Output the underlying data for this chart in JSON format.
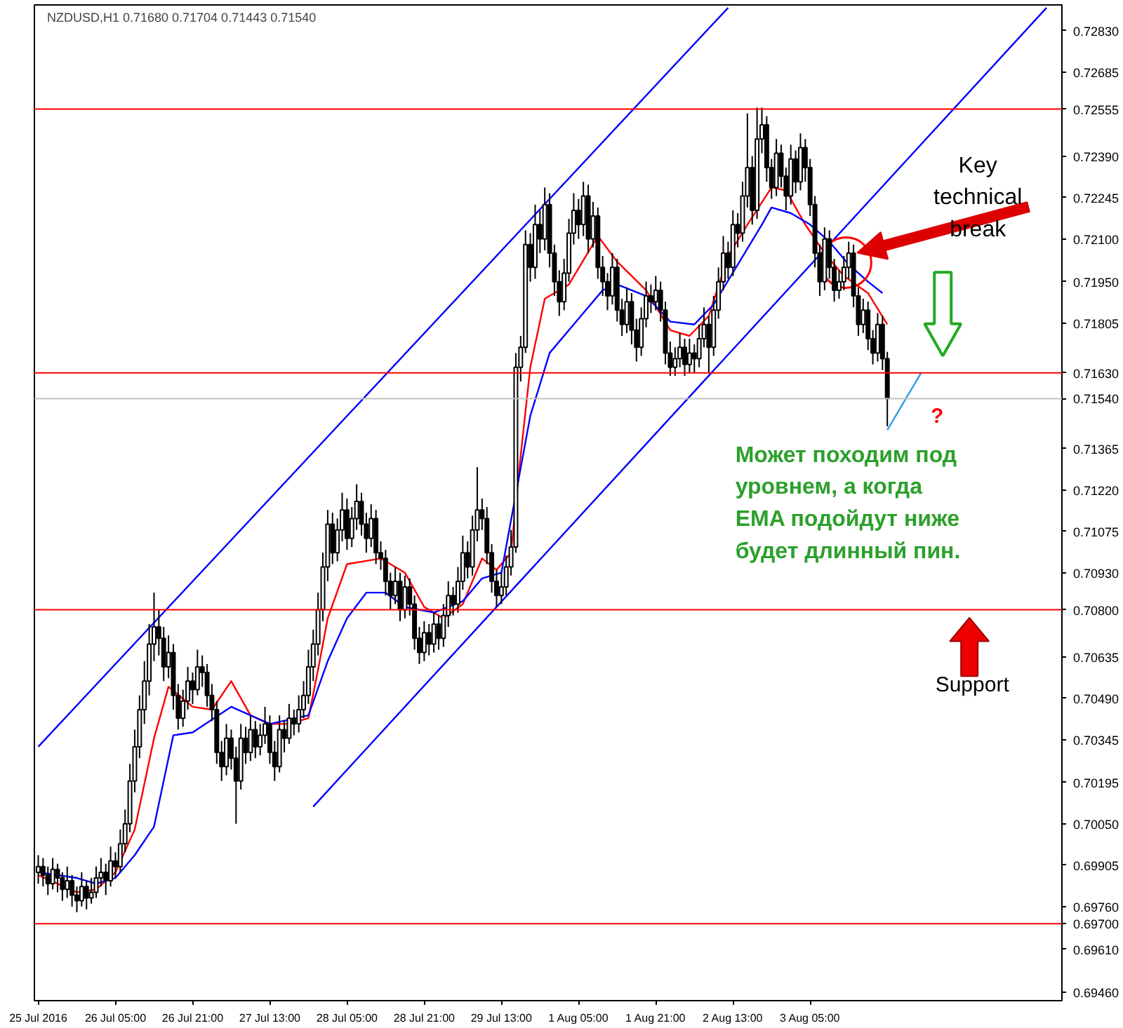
{
  "chart_data": {
    "type": "candlestick",
    "title": "NZDUSD,H1  0.71680 0.71704 0.71443 0.71540",
    "categories": [
      "25 Jul 2016",
      null,
      null,
      null,
      null,
      null,
      null,
      null,
      null,
      null,
      null,
      null,
      null,
      null,
      null,
      null,
      "26 Jul 05:00",
      null,
      null,
      null,
      null,
      null,
      null,
      null,
      null,
      null,
      null,
      null,
      null,
      null,
      null,
      null,
      "26 Jul 21:00",
      null,
      null,
      null,
      null,
      null,
      null,
      null,
      null,
      null,
      null,
      null,
      null,
      null,
      null,
      null,
      "27 Jul 13:00",
      null,
      null,
      null,
      null,
      null,
      null,
      null,
      null,
      null,
      null,
      null,
      null,
      null,
      null,
      null,
      "28 Jul 05:00",
      null,
      null,
      null,
      null,
      null,
      null,
      null,
      null,
      null,
      null,
      null,
      null,
      null,
      null,
      null,
      "28 Jul 21:00",
      null,
      null,
      null,
      null,
      null,
      null,
      null,
      null,
      null,
      null,
      null,
      null,
      null,
      null,
      null,
      "29 Jul 13:00",
      null,
      null,
      null,
      null,
      null,
      null,
      null,
      null,
      null,
      null,
      null,
      null,
      null,
      null,
      null,
      "1 Aug 05:00",
      null,
      null,
      null,
      null,
      null,
      null,
      null,
      null,
      null,
      null,
      null,
      null,
      null,
      null,
      null,
      "1 Aug 21:00",
      null,
      null,
      null,
      null,
      null,
      null,
      null,
      null,
      null,
      null,
      null,
      null,
      null,
      null,
      null,
      "2 Aug 13:00",
      null,
      null,
      null,
      null,
      null,
      null,
      null,
      null,
      null,
      null,
      null,
      null,
      null,
      null,
      null,
      "3 Aug 05:00",
      null,
      null,
      null,
      null,
      null,
      null,
      null,
      null,
      null,
      null,
      null,
      null,
      null,
      null,
      null,
      null,
      null,
      null,
      null,
      null,
      null,
      null,
      null,
      null,
      null,
      null,
      null,
      null,
      null,
      null,
      null,
      null,
      null,
      null,
      null,
      null,
      null,
      null,
      null,
      null,
      null,
      null,
      null,
      null,
      null,
      null,
      null,
      null,
      null,
      null,
      null,
      null
    ],
    "ohlc": [
      [
        0.6988,
        0.6994,
        0.6984,
        0.699
      ],
      [
        0.699,
        0.6993,
        0.6983,
        0.6987
      ],
      [
        0.6987,
        0.699,
        0.698,
        0.6984
      ],
      [
        0.6984,
        0.6993,
        0.6982,
        0.6989
      ],
      [
        0.6989,
        0.6991,
        0.6981,
        0.6986
      ],
      [
        0.6986,
        0.6988,
        0.6978,
        0.6982
      ],
      [
        0.6982,
        0.699,
        0.6979,
        0.6985
      ],
      [
        0.6985,
        0.6987,
        0.6976,
        0.698
      ],
      [
        0.698,
        0.6983,
        0.6974,
        0.6978
      ],
      [
        0.6978,
        0.6988,
        0.6976,
        0.6983
      ],
      [
        0.6983,
        0.6985,
        0.6975,
        0.6979
      ],
      [
        0.6979,
        0.6986,
        0.6977,
        0.6981
      ],
      [
        0.6981,
        0.699,
        0.6979,
        0.6986
      ],
      [
        0.6986,
        0.6993,
        0.6983,
        0.6988
      ],
      [
        0.6988,
        0.6991,
        0.698,
        0.6985
      ],
      [
        0.6985,
        0.6997,
        0.6983,
        0.6992
      ],
      [
        0.6992,
        0.6995,
        0.6986,
        0.699
      ],
      [
        0.699,
        0.7003,
        0.6988,
        0.6998
      ],
      [
        0.6998,
        0.701,
        0.6995,
        0.7005
      ],
      [
        0.7005,
        0.7026,
        0.7002,
        0.702
      ],
      [
        0.702,
        0.7038,
        0.7016,
        0.7032
      ],
      [
        0.7032,
        0.705,
        0.7028,
        0.7045
      ],
      [
        0.7045,
        0.7062,
        0.704,
        0.7055
      ],
      [
        0.7055,
        0.7075,
        0.705,
        0.7068
      ],
      [
        0.7068,
        0.7086,
        0.7062,
        0.7074
      ],
      [
        0.7074,
        0.708,
        0.7064,
        0.707
      ],
      [
        0.707,
        0.7074,
        0.7055,
        0.706
      ],
      [
        0.706,
        0.7071,
        0.7056,
        0.7065
      ],
      [
        0.7065,
        0.7068,
        0.7045,
        0.705
      ],
      [
        0.705,
        0.7054,
        0.7038,
        0.7042
      ],
      [
        0.7042,
        0.7052,
        0.7039,
        0.7048
      ],
      [
        0.7048,
        0.706,
        0.7045,
        0.7055
      ],
      [
        0.7055,
        0.7058,
        0.7047,
        0.7052
      ],
      [
        0.7052,
        0.7066,
        0.705,
        0.706
      ],
      [
        0.706,
        0.7064,
        0.7053,
        0.7058
      ],
      [
        0.7058,
        0.7061,
        0.7046,
        0.705
      ],
      [
        0.705,
        0.7054,
        0.7041,
        0.7045
      ],
      [
        0.7045,
        0.7048,
        0.7026,
        0.703
      ],
      [
        0.703,
        0.7034,
        0.702,
        0.7025
      ],
      [
        0.7025,
        0.704,
        0.7022,
        0.7035
      ],
      [
        0.7035,
        0.7038,
        0.7024,
        0.7028
      ],
      [
        0.7028,
        0.7032,
        0.7005,
        0.702
      ],
      [
        0.702,
        0.704,
        0.7017,
        0.7035
      ],
      [
        0.7035,
        0.7039,
        0.7026,
        0.703
      ],
      [
        0.703,
        0.7043,
        0.7027,
        0.7038
      ],
      [
        0.7038,
        0.7041,
        0.7028,
        0.7032
      ],
      [
        0.7032,
        0.704,
        0.7029,
        0.7036
      ],
      [
        0.7036,
        0.7046,
        0.7033,
        0.704
      ],
      [
        0.704,
        0.7043,
        0.7026,
        0.703
      ],
      [
        0.703,
        0.7034,
        0.702,
        0.7025
      ],
      [
        0.7025,
        0.7043,
        0.7023,
        0.7038
      ],
      [
        0.7038,
        0.7041,
        0.703,
        0.7035
      ],
      [
        0.7035,
        0.7047,
        0.7033,
        0.7042
      ],
      [
        0.7042,
        0.7045,
        0.7036,
        0.704
      ],
      [
        0.704,
        0.705,
        0.7037,
        0.7045
      ],
      [
        0.7045,
        0.7055,
        0.7042,
        0.705
      ],
      [
        0.705,
        0.7066,
        0.7047,
        0.706
      ],
      [
        0.706,
        0.7073,
        0.7055,
        0.7068
      ],
      [
        0.7068,
        0.7086,
        0.7064,
        0.708
      ],
      [
        0.708,
        0.71,
        0.7076,
        0.7095
      ],
      [
        0.7095,
        0.7115,
        0.709,
        0.711
      ],
      [
        0.711,
        0.7114,
        0.7096,
        0.71
      ],
      [
        0.71,
        0.7112,
        0.7097,
        0.7108
      ],
      [
        0.7108,
        0.7121,
        0.7104,
        0.7115
      ],
      [
        0.7115,
        0.7119,
        0.7101,
        0.7105
      ],
      [
        0.7105,
        0.7116,
        0.7102,
        0.7112
      ],
      [
        0.7112,
        0.7124,
        0.7108,
        0.7118
      ],
      [
        0.7118,
        0.7121,
        0.7106,
        0.711
      ],
      [
        0.711,
        0.7114,
        0.71,
        0.7105
      ],
      [
        0.7105,
        0.7117,
        0.7102,
        0.7112
      ],
      [
        0.7112,
        0.7115,
        0.7096,
        0.71
      ],
      [
        0.71,
        0.7104,
        0.7094,
        0.7098
      ],
      [
        0.7098,
        0.7101,
        0.7085,
        0.709
      ],
      [
        0.709,
        0.7093,
        0.708,
        0.7085
      ],
      [
        0.7085,
        0.7095,
        0.7082,
        0.709
      ],
      [
        0.709,
        0.7093,
        0.7076,
        0.708
      ],
      [
        0.708,
        0.7092,
        0.7077,
        0.7088
      ],
      [
        0.7088,
        0.7091,
        0.7078,
        0.7082
      ],
      [
        0.7082,
        0.7085,
        0.7066,
        0.707
      ],
      [
        0.707,
        0.7074,
        0.7061,
        0.7065
      ],
      [
        0.7065,
        0.7076,
        0.7062,
        0.7072
      ],
      [
        0.7072,
        0.7075,
        0.7064,
        0.7068
      ],
      [
        0.7068,
        0.7079,
        0.7065,
        0.7075
      ],
      [
        0.7075,
        0.7078,
        0.7066,
        0.707
      ],
      [
        0.707,
        0.7082,
        0.7067,
        0.7078
      ],
      [
        0.7078,
        0.709,
        0.7074,
        0.7085
      ],
      [
        0.7085,
        0.7088,
        0.7078,
        0.7082
      ],
      [
        0.7082,
        0.7095,
        0.7079,
        0.709
      ],
      [
        0.709,
        0.7106,
        0.7087,
        0.71
      ],
      [
        0.71,
        0.7104,
        0.7091,
        0.7095
      ],
      [
        0.7095,
        0.7113,
        0.7092,
        0.7108
      ],
      [
        0.7108,
        0.713,
        0.7104,
        0.7115
      ],
      [
        0.7115,
        0.7119,
        0.7108,
        0.7112
      ],
      [
        0.7112,
        0.7116,
        0.7096,
        0.71
      ],
      [
        0.71,
        0.7103,
        0.7086,
        0.709
      ],
      [
        0.709,
        0.7094,
        0.7081,
        0.7085
      ],
      [
        0.7085,
        0.7093,
        0.7082,
        0.7088
      ],
      [
        0.7088,
        0.7099,
        0.7085,
        0.7095
      ],
      [
        0.7095,
        0.7108,
        0.7092,
        0.7102
      ],
      [
        0.7102,
        0.717,
        0.71,
        0.7165
      ],
      [
        0.7165,
        0.7176,
        0.716,
        0.7172
      ],
      [
        0.7172,
        0.7213,
        0.717,
        0.7208
      ],
      [
        0.7208,
        0.7212,
        0.7195,
        0.72
      ],
      [
        0.72,
        0.7222,
        0.7196,
        0.7215
      ],
      [
        0.7215,
        0.722,
        0.7205,
        0.721
      ],
      [
        0.721,
        0.7228,
        0.7206,
        0.7222
      ],
      [
        0.7222,
        0.7226,
        0.72,
        0.7205
      ],
      [
        0.7205,
        0.7208,
        0.719,
        0.7195
      ],
      [
        0.7195,
        0.7199,
        0.7183,
        0.7188
      ],
      [
        0.7188,
        0.7203,
        0.7185,
        0.7198
      ],
      [
        0.7198,
        0.7217,
        0.7195,
        0.7212
      ],
      [
        0.7212,
        0.7226,
        0.7208,
        0.722
      ],
      [
        0.722,
        0.7224,
        0.721,
        0.7215
      ],
      [
        0.7215,
        0.723,
        0.7211,
        0.7225
      ],
      [
        0.7225,
        0.7229,
        0.7205,
        0.721
      ],
      [
        0.721,
        0.7223,
        0.7207,
        0.7218
      ],
      [
        0.7218,
        0.7221,
        0.7196,
        0.72
      ],
      [
        0.72,
        0.7204,
        0.719,
        0.7195
      ],
      [
        0.7195,
        0.7198,
        0.7185,
        0.719
      ],
      [
        0.719,
        0.7205,
        0.7187,
        0.72
      ],
      [
        0.72,
        0.7203,
        0.7181,
        0.7185
      ],
      [
        0.7185,
        0.7189,
        0.7176,
        0.718
      ],
      [
        0.718,
        0.7193,
        0.7177,
        0.7188
      ],
      [
        0.7188,
        0.7191,
        0.7173,
        0.7178
      ],
      [
        0.7178,
        0.7182,
        0.7167,
        0.7172
      ],
      [
        0.7172,
        0.7186,
        0.7169,
        0.7182
      ],
      [
        0.7182,
        0.7195,
        0.7179,
        0.719
      ],
      [
        0.719,
        0.7194,
        0.7184,
        0.7188
      ],
      [
        0.7188,
        0.7197,
        0.7185,
        0.7192
      ],
      [
        0.7192,
        0.7195,
        0.7181,
        0.7185
      ],
      [
        0.7185,
        0.7188,
        0.7166,
        0.717
      ],
      [
        0.717,
        0.7174,
        0.7162,
        0.7165
      ],
      [
        0.7165,
        0.7172,
        0.7162,
        0.7168
      ],
      [
        0.7168,
        0.7177,
        0.7165,
        0.7172
      ],
      [
        0.7172,
        0.7175,
        0.7162,
        0.7166
      ],
      [
        0.7166,
        0.7175,
        0.7163,
        0.717
      ],
      [
        0.717,
        0.7173,
        0.7163,
        0.7168
      ],
      [
        0.7168,
        0.718,
        0.7165,
        0.7175
      ],
      [
        0.7175,
        0.7186,
        0.7172,
        0.718
      ],
      [
        0.718,
        0.7183,
        0.7163,
        0.7172
      ],
      [
        0.7172,
        0.719,
        0.7169,
        0.7185
      ],
      [
        0.7185,
        0.72,
        0.7182,
        0.7195
      ],
      [
        0.7195,
        0.7211,
        0.7192,
        0.7205
      ],
      [
        0.7205,
        0.7209,
        0.7196,
        0.72
      ],
      [
        0.72,
        0.722,
        0.7197,
        0.7215
      ],
      [
        0.7215,
        0.7219,
        0.7207,
        0.7212
      ],
      [
        0.7212,
        0.723,
        0.7209,
        0.7225
      ],
      [
        0.7225,
        0.7254,
        0.7221,
        0.7235
      ],
      [
        0.7235,
        0.7239,
        0.7215,
        0.722
      ],
      [
        0.722,
        0.7256,
        0.7217,
        0.7245
      ],
      [
        0.7245,
        0.7256,
        0.724,
        0.725
      ],
      [
        0.725,
        0.7253,
        0.723,
        0.7235
      ],
      [
        0.7235,
        0.7238,
        0.7224,
        0.7228
      ],
      [
        0.7228,
        0.7245,
        0.7225,
        0.724
      ],
      [
        0.724,
        0.7243,
        0.7228,
        0.7232
      ],
      [
        0.7232,
        0.7235,
        0.722,
        0.7225
      ],
      [
        0.7225,
        0.7243,
        0.7222,
        0.7238
      ],
      [
        0.7238,
        0.7241,
        0.7226,
        0.723
      ],
      [
        0.723,
        0.7247,
        0.7227,
        0.7242
      ],
      [
        0.7242,
        0.7245,
        0.723,
        0.7235
      ],
      [
        0.7235,
        0.7238,
        0.7218,
        0.7222
      ],
      [
        0.7222,
        0.7225,
        0.72,
        0.7205
      ],
      [
        0.7205,
        0.7208,
        0.719,
        0.7195
      ],
      [
        0.7195,
        0.7214,
        0.7192,
        0.721
      ],
      [
        0.721,
        0.7213,
        0.7196,
        0.72
      ],
      [
        0.72,
        0.7203,
        0.7188,
        0.7192
      ],
      [
        0.7192,
        0.7199,
        0.7189,
        0.7195
      ],
      [
        0.7195,
        0.7204,
        0.7192,
        0.72
      ],
      [
        0.72,
        0.7209,
        0.7196,
        0.7205
      ],
      [
        0.7205,
        0.7208,
        0.7186,
        0.719
      ],
      [
        0.719,
        0.7193,
        0.7176,
        0.718
      ],
      [
        0.718,
        0.7189,
        0.7177,
        0.7185
      ],
      [
        0.7185,
        0.7188,
        0.7171,
        0.7175
      ],
      [
        0.7175,
        0.7178,
        0.7166,
        0.717
      ],
      [
        0.717,
        0.7184,
        0.7167,
        0.718
      ],
      [
        0.718,
        0.7183,
        0.7164,
        0.7168
      ],
      [
        0.7168,
        0.71704,
        0.71443,
        0.7154
      ],
      null,
      null,
      null,
      null,
      null,
      null,
      null,
      null,
      null,
      null,
      null,
      null,
      null,
      null,
      null,
      null,
      null,
      null,
      null,
      null,
      null,
      null,
      null,
      null,
      null,
      null,
      null,
      null,
      null,
      null,
      null,
      null,
      null,
      null,
      null,
      null
    ],
    "series": [
      {
        "type": "line",
        "color": "#ff0000",
        "values": [
          0.6987,
          null,
          null,
          null,
          null,
          null,
          null,
          null,
          0.6981,
          null,
          null,
          null,
          0.6982,
          null,
          null,
          null,
          0.6988,
          null,
          null,
          null,
          0.7003,
          null,
          null,
          null,
          0.7035,
          null,
          null,
          0.7053,
          null,
          null,
          null,
          null,
          0.7046,
          null,
          null,
          null,
          0.7045,
          null,
          null,
          null,
          0.7055,
          null,
          null,
          null,
          0.7043,
          null,
          null,
          null,
          0.704,
          null,
          null,
          null,
          0.704,
          null,
          null,
          null,
          0.7042,
          null,
          0.7059,
          null,
          0.7077,
          null,
          null,
          null,
          0.7096,
          null,
          null,
          null,
          null,
          null,
          null,
          0.7098,
          null,
          null,
          null,
          null,
          0.7093,
          null,
          null,
          null,
          0.7081,
          null,
          null,
          null,
          0.7077,
          null,
          null,
          null,
          0.7082,
          null,
          null,
          null,
          0.7098,
          null,
          null,
          0.7094,
          null,
          null,
          0.71,
          null,
          0.7134,
          null,
          0.7165,
          null,
          null,
          0.7189,
          null,
          null,
          null,
          null,
          0.7194,
          null,
          null,
          null,
          null,
          null,
          0.7211,
          null,
          null,
          null,
          0.7202,
          null,
          null,
          null,
          null,
          null,
          0.7192,
          null,
          null,
          null,
          null,
          0.7178,
          null,
          null,
          null,
          0.7176,
          null,
          null,
          null,
          0.7183,
          null,
          null,
          null,
          0.7204,
          null,
          null,
          null,
          0.7215,
          null,
          null,
          null,
          null,
          0.7228,
          null,
          null,
          0.7227,
          null,
          null,
          null,
          0.7215,
          null,
          null,
          null,
          0.7205,
          null,
          null,
          null,
          0.7197,
          null,
          null,
          null,
          null,
          0.7191,
          null,
          null,
          null,
          0.718,
          null,
          null,
          null,
          null,
          null,
          null,
          null,
          null,
          null,
          null,
          null,
          null,
          null,
          null,
          null,
          null,
          null,
          null,
          null,
          null,
          null,
          null,
          null,
          null,
          null,
          null,
          null,
          null,
          null,
          null,
          null,
          null,
          null,
          null,
          null,
          null
        ]
      },
      {
        "type": "line",
        "color": "#0000ff",
        "values": [
          0.6988,
          null,
          null,
          null,
          null,
          null,
          null,
          null,
          0.6986,
          null,
          null,
          null,
          0.6984,
          null,
          null,
          null,
          0.6986,
          null,
          null,
          null,
          0.6994,
          null,
          null,
          null,
          0.7004,
          null,
          null,
          null,
          0.7036,
          null,
          null,
          null,
          0.7037,
          null,
          null,
          null,
          null,
          null,
          null,
          null,
          0.7046,
          null,
          null,
          null,
          null,
          null,
          null,
          null,
          0.704,
          null,
          null,
          null,
          null,
          null,
          null,
          null,
          0.7043,
          null,
          null,
          null,
          0.7062,
          null,
          null,
          null,
          0.7077,
          null,
          null,
          null,
          0.7086,
          null,
          null,
          null,
          0.7086,
          null,
          null,
          null,
          0.7081,
          null,
          null,
          null,
          null,
          null,
          0.7079,
          null,
          null,
          null,
          null,
          null,
          0.7083,
          null,
          null,
          null,
          0.7091,
          null,
          null,
          null,
          0.7093,
          null,
          null,
          null,
          null,
          null,
          0.7148,
          null,
          null,
          null,
          0.717,
          null,
          null,
          null,
          null,
          null,
          0.7182,
          null,
          null,
          null,
          null,
          0.7192,
          null,
          null,
          0.7194,
          null,
          null,
          null,
          null,
          null,
          0.719,
          null,
          null,
          null,
          null,
          0.7181,
          null,
          null,
          null,
          null,
          0.718,
          null,
          null,
          null,
          0.7187,
          null,
          null,
          null,
          null,
          0.7201,
          null,
          null,
          null,
          null,
          0.7215,
          null,
          0.7221,
          null,
          null,
          null,
          0.7219,
          null,
          null,
          null,
          0.7215,
          null,
          null,
          null,
          0.7209,
          null,
          null,
          null,
          0.7201,
          null,
          null,
          null,
          0.7195,
          null,
          null,
          0.7191,
          null,
          null,
          null,
          null,
          null,
          null,
          null,
          null,
          null,
          null,
          null,
          null,
          null,
          null,
          null,
          null,
          null,
          null,
          null,
          null,
          null,
          null,
          null,
          null,
          null,
          null,
          null,
          null,
          null,
          null,
          null,
          null,
          null,
          null,
          null,
          null,
          null
        ]
      },
      {
        "type": "line",
        "color": "#0000ff",
        "values": [
          0.7032,
          null,
          null,
          null,
          null,
          null,
          null,
          null,
          null,
          null,
          null,
          null,
          null,
          null,
          null,
          null,
          null,
          null,
          null,
          null,
          null,
          null,
          null,
          null,
          null,
          null,
          null,
          null,
          null,
          null,
          null,
          null,
          null,
          null,
          null,
          null,
          null,
          null,
          null,
          null,
          null,
          null,
          null,
          null,
          null,
          null,
          null,
          null,
          null,
          null,
          null,
          null,
          null,
          null,
          null,
          null,
          null,
          null,
          null,
          null,
          null,
          null,
          null,
          null,
          null,
          null,
          null,
          null,
          null,
          null,
          null,
          null,
          null,
          null,
          null,
          null,
          null,
          null,
          null,
          null,
          null,
          null,
          null,
          null,
          null,
          null,
          null,
          null,
          null,
          null,
          null,
          null,
          null,
          null,
          null,
          null,
          null,
          null,
          null,
          null,
          null,
          null,
          null,
          null,
          null,
          null,
          null,
          null,
          null,
          null,
          null,
          null,
          null,
          null,
          null,
          null,
          null,
          null,
          null,
          null,
          null,
          null,
          null,
          null,
          null,
          null,
          null,
          null,
          null,
          null,
          null,
          null,
          null,
          null,
          null,
          null,
          null,
          null,
          null,
          null,
          null,
          null,
          null,
          0.7291,
          null,
          null,
          null,
          null,
          null,
          null,
          null,
          null,
          null,
          null,
          null,
          null,
          null,
          null,
          null,
          null,
          null,
          null,
          null,
          null,
          null,
          null,
          null,
          null,
          null,
          null,
          null,
          null,
          null,
          null,
          null,
          null,
          null,
          null,
          null,
          null,
          null,
          null,
          null,
          null,
          null,
          null,
          null,
          null,
          null,
          null,
          null,
          null,
          null,
          null,
          null,
          null,
          null,
          null,
          null,
          null,
          null,
          null,
          null,
          null,
          null,
          null,
          null,
          null,
          null,
          null,
          null,
          null,
          null
        ]
      },
      {
        "type": "line",
        "color": "#0000ff",
        "values": [
          null,
          null,
          null,
          null,
          null,
          null,
          null,
          null,
          null,
          null,
          null,
          null,
          null,
          null,
          null,
          null,
          null,
          null,
          null,
          null,
          null,
          null,
          null,
          null,
          null,
          null,
          null,
          null,
          null,
          null,
          null,
          null,
          null,
          null,
          null,
          null,
          null,
          null,
          null,
          null,
          null,
          null,
          null,
          null,
          null,
          null,
          null,
          null,
          null,
          null,
          null,
          null,
          null,
          null,
          null,
          null,
          null,
          0.7011,
          null,
          null,
          null,
          null,
          null,
          null,
          null,
          null,
          null,
          null,
          null,
          null,
          null,
          null,
          null,
          null,
          null,
          null,
          null,
          null,
          null,
          null,
          null,
          null,
          null,
          null,
          null,
          null,
          null,
          null,
          null,
          null,
          null,
          null,
          null,
          null,
          null,
          null,
          null,
          null,
          null,
          null,
          null,
          null,
          null,
          null,
          null,
          null,
          null,
          null,
          null,
          null,
          null,
          null,
          null,
          null,
          null,
          null,
          null,
          null,
          null,
          null,
          null,
          null,
          null,
          null,
          null,
          null,
          null,
          null,
          null,
          null,
          null,
          null,
          null,
          null,
          null,
          null,
          null,
          null,
          null,
          null,
          null,
          null,
          null,
          null,
          null,
          null,
          null,
          null,
          null,
          null,
          null,
          null,
          null,
          null,
          null,
          null,
          null,
          null,
          null,
          null,
          null,
          null,
          null,
          null,
          null,
          null,
          null,
          null,
          null,
          null,
          null,
          null,
          null,
          null,
          null,
          null,
          null,
          null,
          null,
          null,
          null,
          null,
          null,
          null,
          null,
          null,
          null,
          null,
          null,
          null,
          null,
          null,
          null,
          null,
          null,
          null,
          null,
          null,
          null,
          null,
          null,
          null,
          null,
          null,
          null,
          null,
          null,
          null,
          null,
          0.7291,
          null,
          null,
          null
        ]
      },
      {
        "type": "line",
        "color": "#2a9de8",
        "values": [
          null,
          null,
          null,
          null,
          null,
          null,
          null,
          null,
          null,
          null,
          null,
          null,
          null,
          null,
          null,
          null,
          null,
          null,
          null,
          null,
          null,
          null,
          null,
          null,
          null,
          null,
          null,
          null,
          null,
          null,
          null,
          null,
          null,
          null,
          null,
          null,
          null,
          null,
          null,
          null,
          null,
          null,
          null,
          null,
          null,
          null,
          null,
          null,
          null,
          null,
          null,
          null,
          null,
          null,
          null,
          null,
          null,
          null,
          null,
          null,
          null,
          null,
          null,
          null,
          null,
          null,
          null,
          null,
          null,
          null,
          null,
          null,
          null,
          null,
          null,
          null,
          null,
          null,
          null,
          null,
          null,
          null,
          null,
          null,
          null,
          null,
          null,
          null,
          null,
          null,
          null,
          null,
          null,
          null,
          null,
          null,
          null,
          null,
          null,
          null,
          null,
          null,
          null,
          null,
          null,
          null,
          null,
          null,
          null,
          null,
          null,
          null,
          null,
          null,
          null,
          null,
          null,
          null,
          null,
          null,
          null,
          null,
          null,
          null,
          null,
          null,
          null,
          null,
          null,
          null,
          null,
          null,
          null,
          null,
          null,
          null,
          null,
          null,
          null,
          null,
          null,
          null,
          null,
          null,
          null,
          null,
          null,
          null,
          null,
          null,
          null,
          null,
          null,
          null,
          null,
          null,
          null,
          null,
          null,
          null,
          null,
          null,
          null,
          null,
          null,
          null,
          null,
          null,
          null,
          null,
          null,
          null,
          null,
          null,
          null,
          null,
          0.7143,
          null,
          null,
          null,
          null,
          null,
          null,
          0.7163,
          null,
          null,
          null,
          null,
          null,
          null,
          null,
          null,
          null,
          null,
          null,
          null,
          null,
          null,
          null,
          null,
          null,
          null,
          null,
          null,
          null,
          null,
          null,
          null,
          null,
          null,
          null,
          null,
          null
        ]
      }
    ],
    "ref_lines": [
      {
        "axis": "y",
        "value": 0.72555,
        "label": "0.72555",
        "color": "#ff0000"
      },
      {
        "axis": "y",
        "value": 0.7163,
        "label": "0.71630",
        "color": "#ff0000"
      },
      {
        "axis": "y",
        "value": 0.7154,
        "label": "0.71540",
        "color": "#c0c0c0"
      },
      {
        "axis": "y",
        "value": 0.708,
        "label": "0.70800",
        "color": "#ff0000"
      },
      {
        "axis": "y",
        "value": 0.697,
        "label": "0.69700",
        "color": "#ff0000"
      }
    ],
    "ylim": [
      0.6943,
      0.7292
    ],
    "yticks": [
      {
        "value": 0.7283,
        "label": "0.72830"
      },
      0.72685,
      {
        "value": 0.7239,
        "label": "0.72390"
      },
      0.72245,
      {
        "value": 0.721,
        "label": "0.72100"
      },
      {
        "value": 0.7195,
        "label": "0.71950"
      },
      0.71805,
      0.71365,
      {
        "value": 0.7122,
        "label": "0.71220"
      },
      0.71075,
      {
        "value": 0.7093,
        "label": "0.70930"
      },
      0.70635,
      {
        "value": 0.7049,
        "label": "0.70490"
      },
      0.70345,
      0.70195,
      {
        "value": 0.7005,
        "label": "0.70050"
      },
      0.69905,
      {
        "value": 0.6976,
        "label": "0.69760"
      },
      {
        "value": 0.6961,
        "label": "0.69610"
      },
      {
        "value": 0.6946,
        "label": "0.69460"
      }
    ],
    "annotations": [
      "Key\ntechnical\nbreak",
      "Может походим под\nуровнем, а когда\nEMA подойдут ниже\nбудет длинный пин.",
      "?",
      "Support"
    ],
    "grid": false
  }
}
